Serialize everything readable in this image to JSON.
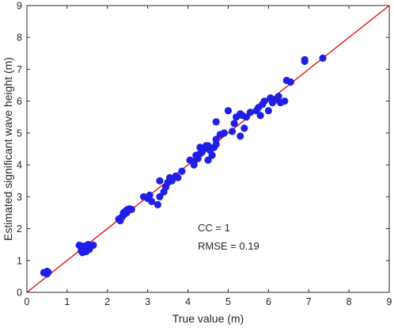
{
  "chart_data": {
    "type": "scatter",
    "title": "",
    "xlabel": "True value (m)",
    "ylabel": "Estimated significant wave height (m)",
    "xlim": [
      0,
      9
    ],
    "ylim": [
      0,
      9
    ],
    "xticks": [
      "0",
      "1",
      "2",
      "3",
      "4",
      "5",
      "6",
      "7",
      "8",
      "9"
    ],
    "yticks": [
      "0",
      "1",
      "2",
      "3",
      "4",
      "5",
      "6",
      "7",
      "8",
      "9"
    ],
    "grid": false,
    "reference_line": {
      "type": "y=x",
      "color": "#e00000"
    },
    "marker_color": "#1f1fe6",
    "annotations": [
      "CC = 1",
      "RMSE = 0.19"
    ],
    "points": [
      [
        0.42,
        0.62
      ],
      [
        0.47,
        0.6
      ],
      [
        0.5,
        0.58
      ],
      [
        0.53,
        0.63
      ],
      [
        0.5,
        0.66
      ],
      [
        1.3,
        1.48
      ],
      [
        1.35,
        1.3
      ],
      [
        1.38,
        1.25
      ],
      [
        1.4,
        1.45
      ],
      [
        1.43,
        1.38
      ],
      [
        1.47,
        1.28
      ],
      [
        1.5,
        1.42
      ],
      [
        1.52,
        1.5
      ],
      [
        1.55,
        1.35
      ],
      [
        1.6,
        1.45
      ],
      [
        1.65,
        1.48
      ],
      [
        2.28,
        2.3
      ],
      [
        2.32,
        2.25
      ],
      [
        2.35,
        2.35
      ],
      [
        2.38,
        2.4
      ],
      [
        2.4,
        2.5
      ],
      [
        2.42,
        2.45
      ],
      [
        2.45,
        2.55
      ],
      [
        2.48,
        2.5
      ],
      [
        2.5,
        2.6
      ],
      [
        2.55,
        2.62
      ],
      [
        2.6,
        2.6
      ],
      [
        2.9,
        3.0
      ],
      [
        3.0,
        2.95
      ],
      [
        3.05,
        3.05
      ],
      [
        3.1,
        2.85
      ],
      [
        3.25,
        2.75
      ],
      [
        3.3,
        3.0
      ],
      [
        3.3,
        3.5
      ],
      [
        3.4,
        3.15
      ],
      [
        3.45,
        3.3
      ],
      [
        3.5,
        3.45
      ],
      [
        3.55,
        3.6
      ],
      [
        3.6,
        3.5
      ],
      [
        3.7,
        3.65
      ],
      [
        3.75,
        3.6
      ],
      [
        4.05,
        4.15
      ],
      [
        4.15,
        4.1
      ],
      [
        4.2,
        4.3
      ],
      [
        4.25,
        4.2
      ],
      [
        4.3,
        4.35
      ],
      [
        4.3,
        4.55
      ],
      [
        4.35,
        4.4
      ],
      [
        4.4,
        4.5
      ],
      [
        4.45,
        4.6
      ],
      [
        4.5,
        4.15
      ],
      [
        4.5,
        4.6
      ],
      [
        4.55,
        4.45
      ],
      [
        4.65,
        4.55
      ],
      [
        4.7,
        4.65
      ],
      [
        4.7,
        4.8
      ],
      [
        4.8,
        4.95
      ],
      [
        4.9,
        5.0
      ],
      [
        5.0,
        5.7
      ],
      [
        5.1,
        5.05
      ],
      [
        5.15,
        5.3
      ],
      [
        5.2,
        5.5
      ],
      [
        5.3,
        5.6
      ],
      [
        5.3,
        4.9
      ],
      [
        5.35,
        5.55
      ],
      [
        5.4,
        5.15
      ],
      [
        5.45,
        5.5
      ],
      [
        5.55,
        5.65
      ],
      [
        5.7,
        5.7
      ],
      [
        5.75,
        5.8
      ],
      [
        5.8,
        5.55
      ],
      [
        5.85,
        5.9
      ],
      [
        5.9,
        6.0
      ],
      [
        6.0,
        5.7
      ],
      [
        6.05,
        6.1
      ],
      [
        6.1,
        5.95
      ],
      [
        6.2,
        6.05
      ],
      [
        6.25,
        6.15
      ],
      [
        6.3,
        5.95
      ],
      [
        6.4,
        6.0
      ],
      [
        6.45,
        6.65
      ],
      [
        6.55,
        6.6
      ],
      [
        6.9,
        7.3
      ],
      [
        6.9,
        7.25
      ],
      [
        7.35,
        7.35
      ],
      [
        4.7,
        5.35
      ],
      [
        4.15,
        4.0
      ],
      [
        3.85,
        3.8
      ],
      [
        4.6,
        4.3
      ]
    ]
  }
}
